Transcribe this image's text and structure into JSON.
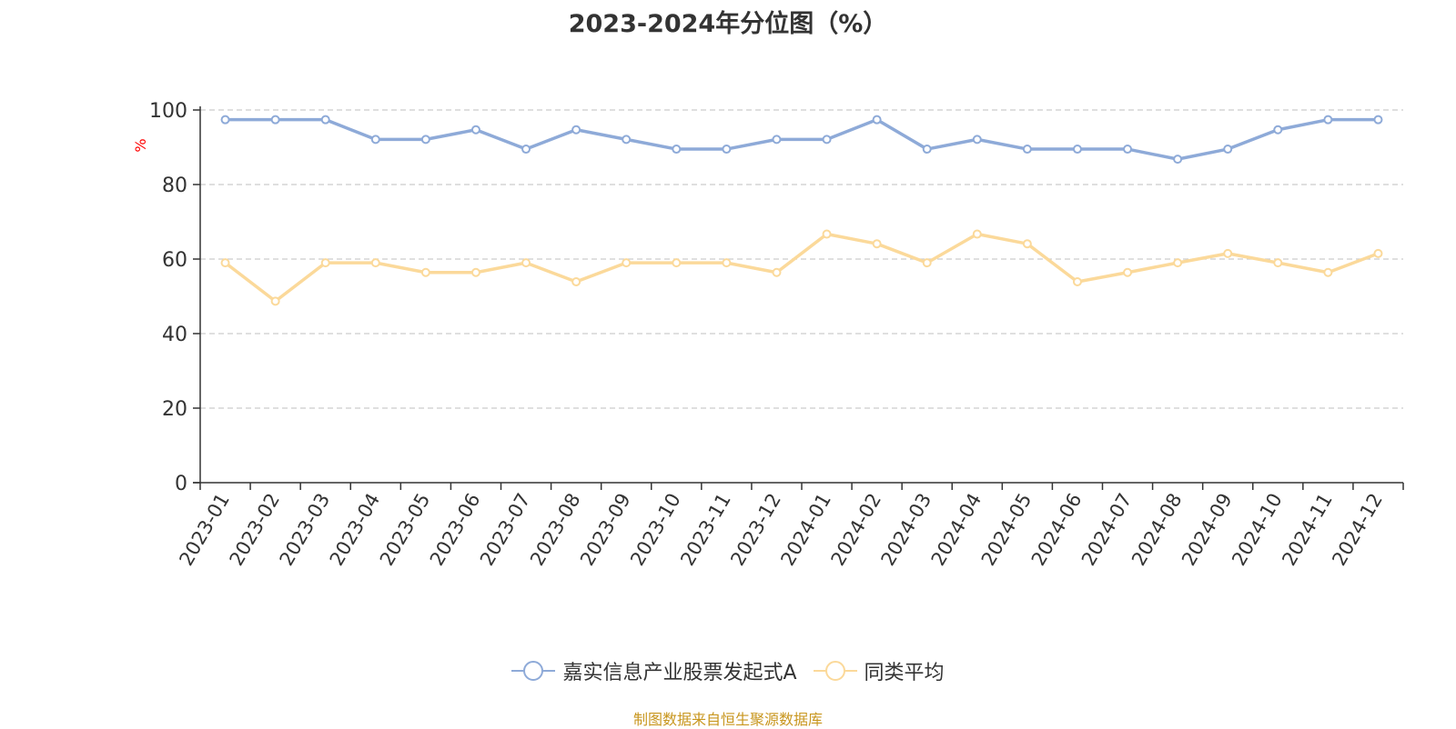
{
  "title": "2023-2024年分位图（%）",
  "source_note": "制图数据来自恒生聚源数据库",
  "chart_data": {
    "type": "line",
    "title": "2023-2024年分位图（%）",
    "ylabel": "%",
    "xlabel": "",
    "ylim": [
      0,
      100
    ],
    "yticks": [
      0,
      20,
      40,
      60,
      80,
      100
    ],
    "grid": true,
    "legend_position": "bottom",
    "categories": [
      "2023-01",
      "2023-02",
      "2023-03",
      "2023-04",
      "2023-05",
      "2023-06",
      "2023-07",
      "2023-08",
      "2023-09",
      "2023-10",
      "2023-11",
      "2023-12",
      "2024-01",
      "2024-02",
      "2024-03",
      "2024-04",
      "2024-05",
      "2024-06",
      "2024-07",
      "2024-08",
      "2024-09",
      "2024-10",
      "2024-11",
      "2024-12"
    ],
    "series": [
      {
        "name": "嘉实信息产业股票发起式A",
        "color": "#8eaad8",
        "values": [
          97.4,
          97.4,
          97.4,
          92.1,
          92.1,
          94.7,
          89.5,
          94.7,
          92.1,
          89.5,
          89.5,
          92.1,
          92.1,
          97.4,
          89.5,
          92.1,
          89.5,
          89.5,
          89.5,
          86.8,
          89.5,
          94.7,
          97.4,
          97.4
        ]
      },
      {
        "name": "同类平均",
        "color": "#fbd99a",
        "values": [
          59.0,
          48.7,
          59.0,
          59.0,
          56.4,
          56.4,
          59.0,
          53.9,
          59.0,
          59.0,
          59.0,
          56.4,
          66.7,
          64.1,
          59.0,
          66.7,
          64.1,
          53.9,
          56.4,
          59.0,
          61.5,
          59.0,
          56.4,
          61.5
        ]
      }
    ]
  },
  "colors": {
    "axis": "#333333",
    "grid": "#cccccc",
    "ylabel": "#ff0000",
    "source": "#c8961e"
  }
}
